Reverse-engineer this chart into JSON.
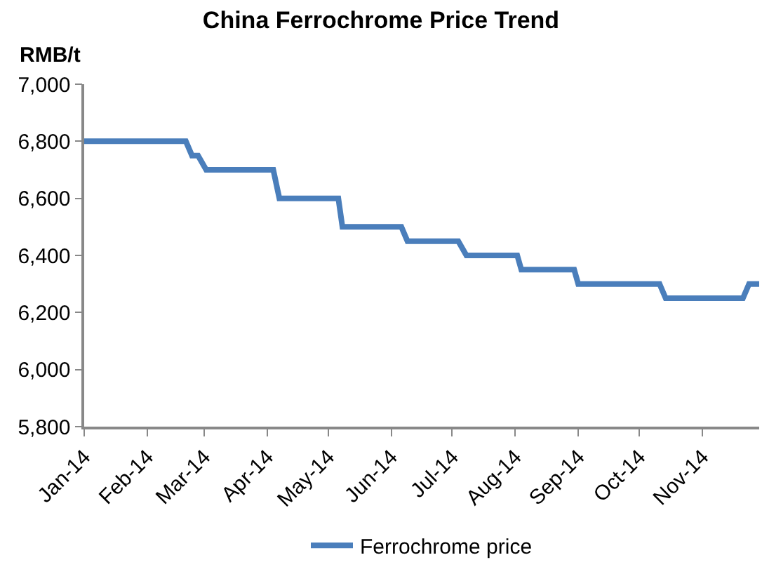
{
  "chart_data": {
    "type": "line",
    "title": "China Ferrochrome Price Trend",
    "ylabel": "RMB/t",
    "x": [
      "2014-01-01",
      "2014-02-20",
      "2014-02-23",
      "2014-02-26",
      "2014-03-02",
      "2014-04-04",
      "2014-04-07",
      "2014-05-06",
      "2014-05-08",
      "2014-06-06",
      "2014-06-09",
      "2014-07-04",
      "2014-07-08",
      "2014-08-02",
      "2014-08-04",
      "2014-08-30",
      "2014-09-01",
      "2014-10-11",
      "2014-10-14",
      "2014-11-21",
      "2014-11-24",
      "2014-11-29"
    ],
    "series": [
      {
        "name": "Ferrochrome price",
        "color": "#4a7ebb",
        "values": [
          6800,
          6800,
          6750,
          6750,
          6700,
          6700,
          6600,
          6600,
          6500,
          6500,
          6450,
          6450,
          6400,
          6400,
          6350,
          6350,
          6300,
          6300,
          6250,
          6250,
          6300,
          6300
        ]
      }
    ],
    "xlim": [
      "2014-01-01",
      "2014-11-29"
    ],
    "xticks": [
      {
        "value": "2014-01-01",
        "label": "Jan-14"
      },
      {
        "value": "2014-02-01",
        "label": "Feb-14"
      },
      {
        "value": "2014-03-01",
        "label": "Mar-14"
      },
      {
        "value": "2014-04-01",
        "label": "Apr-14"
      },
      {
        "value": "2014-05-01",
        "label": "May-14"
      },
      {
        "value": "2014-06-01",
        "label": "Jun-14"
      },
      {
        "value": "2014-07-01",
        "label": "Jul-14"
      },
      {
        "value": "2014-08-01",
        "label": "Aug-14"
      },
      {
        "value": "2014-09-01",
        "label": "Sep-14"
      },
      {
        "value": "2014-10-01",
        "label": "Oct-14"
      },
      {
        "value": "2014-11-01",
        "label": "Nov-14"
      }
    ],
    "ylim": [
      5800,
      7000
    ],
    "yticks": [
      {
        "value": 5800,
        "label": "5,800"
      },
      {
        "value": 6000,
        "label": "6,000"
      },
      {
        "value": 6200,
        "label": "6,200"
      },
      {
        "value": 6400,
        "label": "6,400"
      },
      {
        "value": 6600,
        "label": "6,600"
      },
      {
        "value": 6800,
        "label": "6,800"
      },
      {
        "value": 7000,
        "label": "7,000"
      }
    ],
    "legend": "bottom",
    "marker": "none",
    "line_style": "solid"
  }
}
